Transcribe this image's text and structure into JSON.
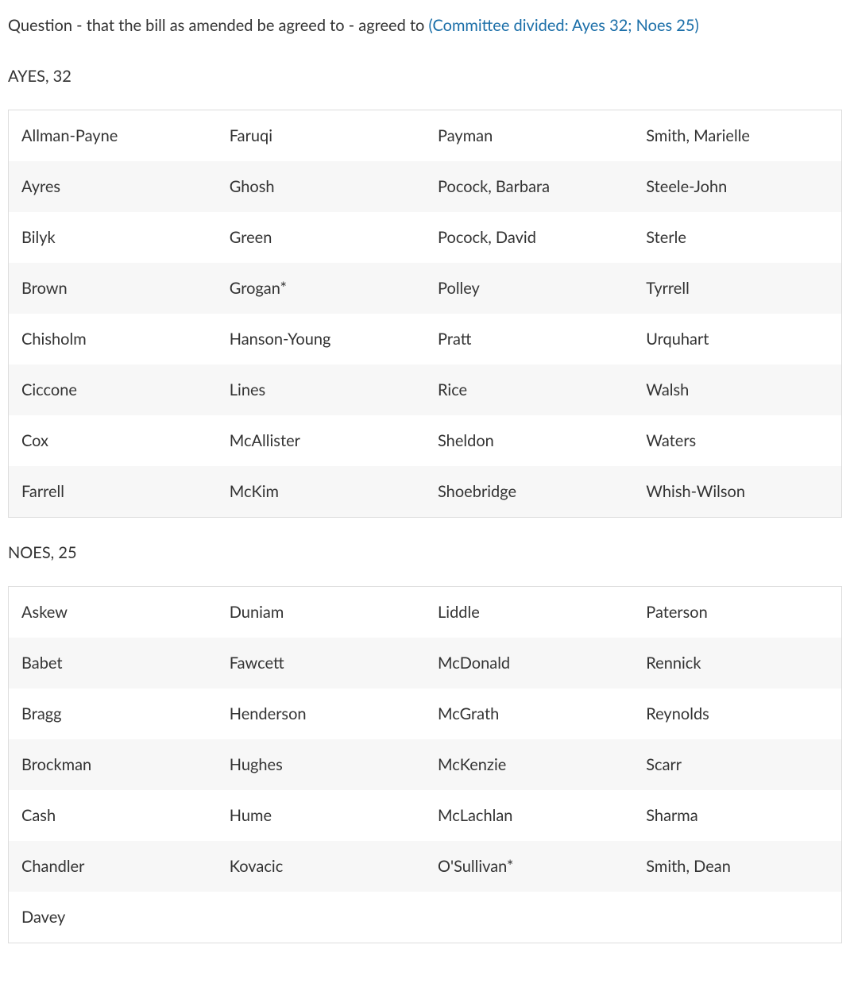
{
  "question": {
    "prefix": "Question - that the bill as amended be agreed to -  agreed to ",
    "link_text": "(Committee divided: Ayes 32; Noes 25)",
    "link_color": "#1a6ea8"
  },
  "ayes": {
    "heading": "AYES, 32",
    "rows": [
      [
        "Allman-Payne",
        "Faruqi",
        "Payman",
        "Smith, Marielle"
      ],
      [
        "Ayres",
        "Ghosh",
        "Pocock, Barbara",
        "Steele-John"
      ],
      [
        "Bilyk",
        "Green",
        "Pocock, David",
        "Sterle"
      ],
      [
        "Brown",
        "Grogan*",
        "Polley",
        "Tyrrell"
      ],
      [
        "Chisholm",
        "Hanson-Young",
        "Pratt",
        "Urquhart"
      ],
      [
        "Ciccone",
        "Lines",
        "Rice",
        "Walsh"
      ],
      [
        "Cox",
        "McAllister",
        "Sheldon",
        "Waters"
      ],
      [
        "Farrell",
        "McKim",
        "Shoebridge",
        "Whish-Wilson"
      ]
    ],
    "table": {
      "columns": 4,
      "row_colors": [
        "#ffffff",
        "#f7f7f7"
      ],
      "border_color": "#dddddd",
      "cell_fontsize": 20,
      "cell_color": "#333333"
    }
  },
  "noes": {
    "heading": "NOES, 25",
    "rows": [
      [
        "Askew",
        "Duniam",
        "Liddle",
        "Paterson"
      ],
      [
        "Babet",
        "Fawcett",
        "McDonald",
        "Rennick"
      ],
      [
        "Bragg",
        "Henderson",
        "McGrath",
        "Reynolds"
      ],
      [
        "Brockman",
        "Hughes",
        "McKenzie",
        "Scarr"
      ],
      [
        "Cash",
        "Hume",
        "McLachlan",
        "Sharma"
      ],
      [
        "Chandler",
        "Kovacic",
        "O'Sullivan*",
        "Smith, Dean"
      ],
      [
        "Davey",
        "",
        "",
        ""
      ]
    ],
    "table": {
      "columns": 4,
      "row_colors": [
        "#ffffff",
        "#f7f7f7"
      ],
      "border_color": "#dddddd",
      "cell_fontsize": 20,
      "cell_color": "#333333"
    }
  },
  "colors": {
    "text": "#333333",
    "background": "#ffffff",
    "stripe_even": "#ffffff",
    "stripe_odd": "#f7f7f7",
    "border": "#dddddd"
  }
}
